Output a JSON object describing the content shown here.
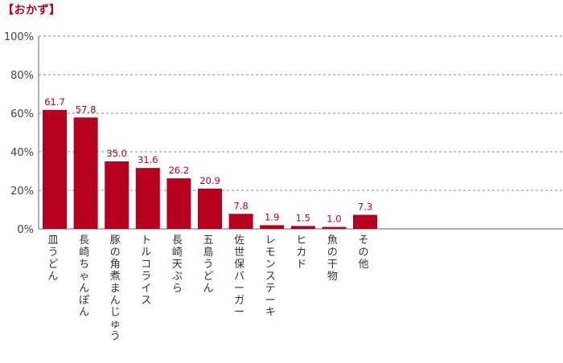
{
  "chart_data": {
    "type": "bar",
    "title": "【おかず】",
    "categories": [
      "皿うどん",
      "長崎ちゃんぽん",
      "豚の角煮まんじゅう",
      "トルコライス",
      "長崎天ぷら",
      "五島うどん",
      "佐世保バーガー",
      "レモンステーキ",
      "ヒカド",
      "魚の干物",
      "その他"
    ],
    "values": [
      61.7,
      57.8,
      35.0,
      31.6,
      26.2,
      20.9,
      7.8,
      1.9,
      1.5,
      1.0,
      7.3
    ],
    "value_labels": [
      "61.7",
      "57.8",
      "35.0",
      "31.6",
      "26.2",
      "20.9",
      "7.8",
      "1.9",
      "1.5",
      "1.0",
      "7.3"
    ],
    "yticks": [
      "0%",
      "20%",
      "40%",
      "60%",
      "80%",
      "100%"
    ],
    "ylim": [
      0,
      100
    ],
    "bar_color": "#b5001f",
    "label_color": "#b5001f",
    "grid": true
  }
}
